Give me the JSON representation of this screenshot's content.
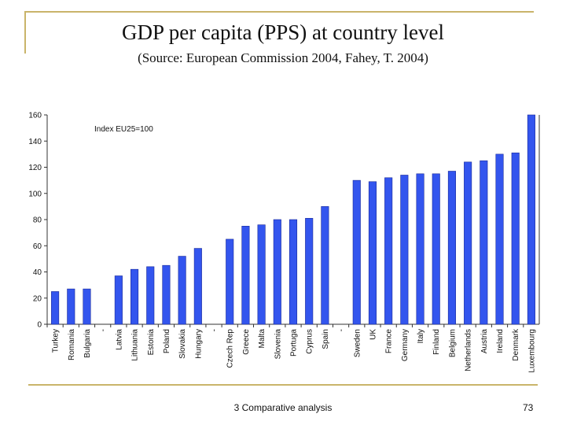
{
  "slide": {
    "title": "GDP per capita (PPS) at country level",
    "subtitle": "(Source: European Commission 2004, Fahey, T. 2004)",
    "footer": "3 Comparative analysis",
    "page_number": "73"
  },
  "colors": {
    "bar": "#3355ee",
    "bar_edge": "#1a2a99",
    "accent_line": "#c9b46a"
  },
  "chart_data": {
    "type": "bar",
    "title": "",
    "annotation": "Index EU25=100",
    "xlabel": "",
    "ylabel": "",
    "ylim": [
      0,
      160
    ],
    "yticks": [
      0,
      20,
      40,
      60,
      80,
      100,
      120,
      140,
      160
    ],
    "grid": false,
    "categories": [
      "Turkey",
      "Romania",
      "Bulgaria",
      "-",
      "Latvia",
      "Lithuania",
      "Estonia",
      "Poland",
      "Slovakia",
      "Hungary",
      "-",
      "Czech Rep",
      "Greece",
      "Malta",
      "Slovenia",
      "Portuga",
      "Cyprus",
      "Spain",
      "-",
      "Sweden",
      "UK",
      "France",
      "Germany",
      "Italy",
      "Finland",
      "Belgium",
      "Netherlands",
      "Austria",
      "Ireland",
      "Denmark",
      "Luxembourg"
    ],
    "values": [
      25,
      27,
      27,
      null,
      37,
      42,
      44,
      45,
      52,
      58,
      null,
      65,
      75,
      76,
      80,
      80,
      81,
      90,
      null,
      110,
      109,
      112,
      114,
      115,
      115,
      117,
      124,
      125,
      130,
      131,
      160
    ]
  }
}
